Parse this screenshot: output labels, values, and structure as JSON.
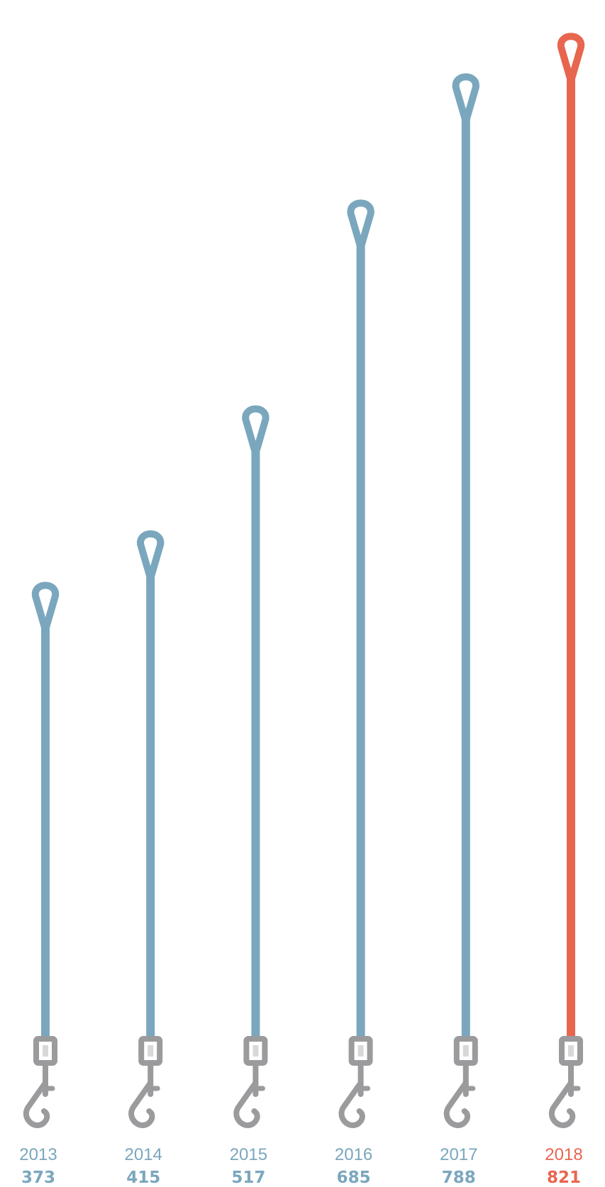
{
  "chart_data": {
    "type": "bar",
    "title": "",
    "xlabel": "",
    "ylabel": "",
    "categories": [
      "2013",
      "2014",
      "2015",
      "2016",
      "2017",
      "2018"
    ],
    "values": [
      373,
      415,
      517,
      685,
      788,
      821
    ],
    "value_labels": [
      "373",
      "415",
      "517",
      "685",
      "788",
      "821"
    ],
    "highlight_index": 5,
    "mark_style": "leash",
    "grid": false,
    "legend": "none"
  },
  "colors": {
    "bar": "#7aa7bd",
    "highlight": "#e8664f",
    "hardware": "#9b9b9e",
    "hardware_inner": "#d8d8d8"
  }
}
